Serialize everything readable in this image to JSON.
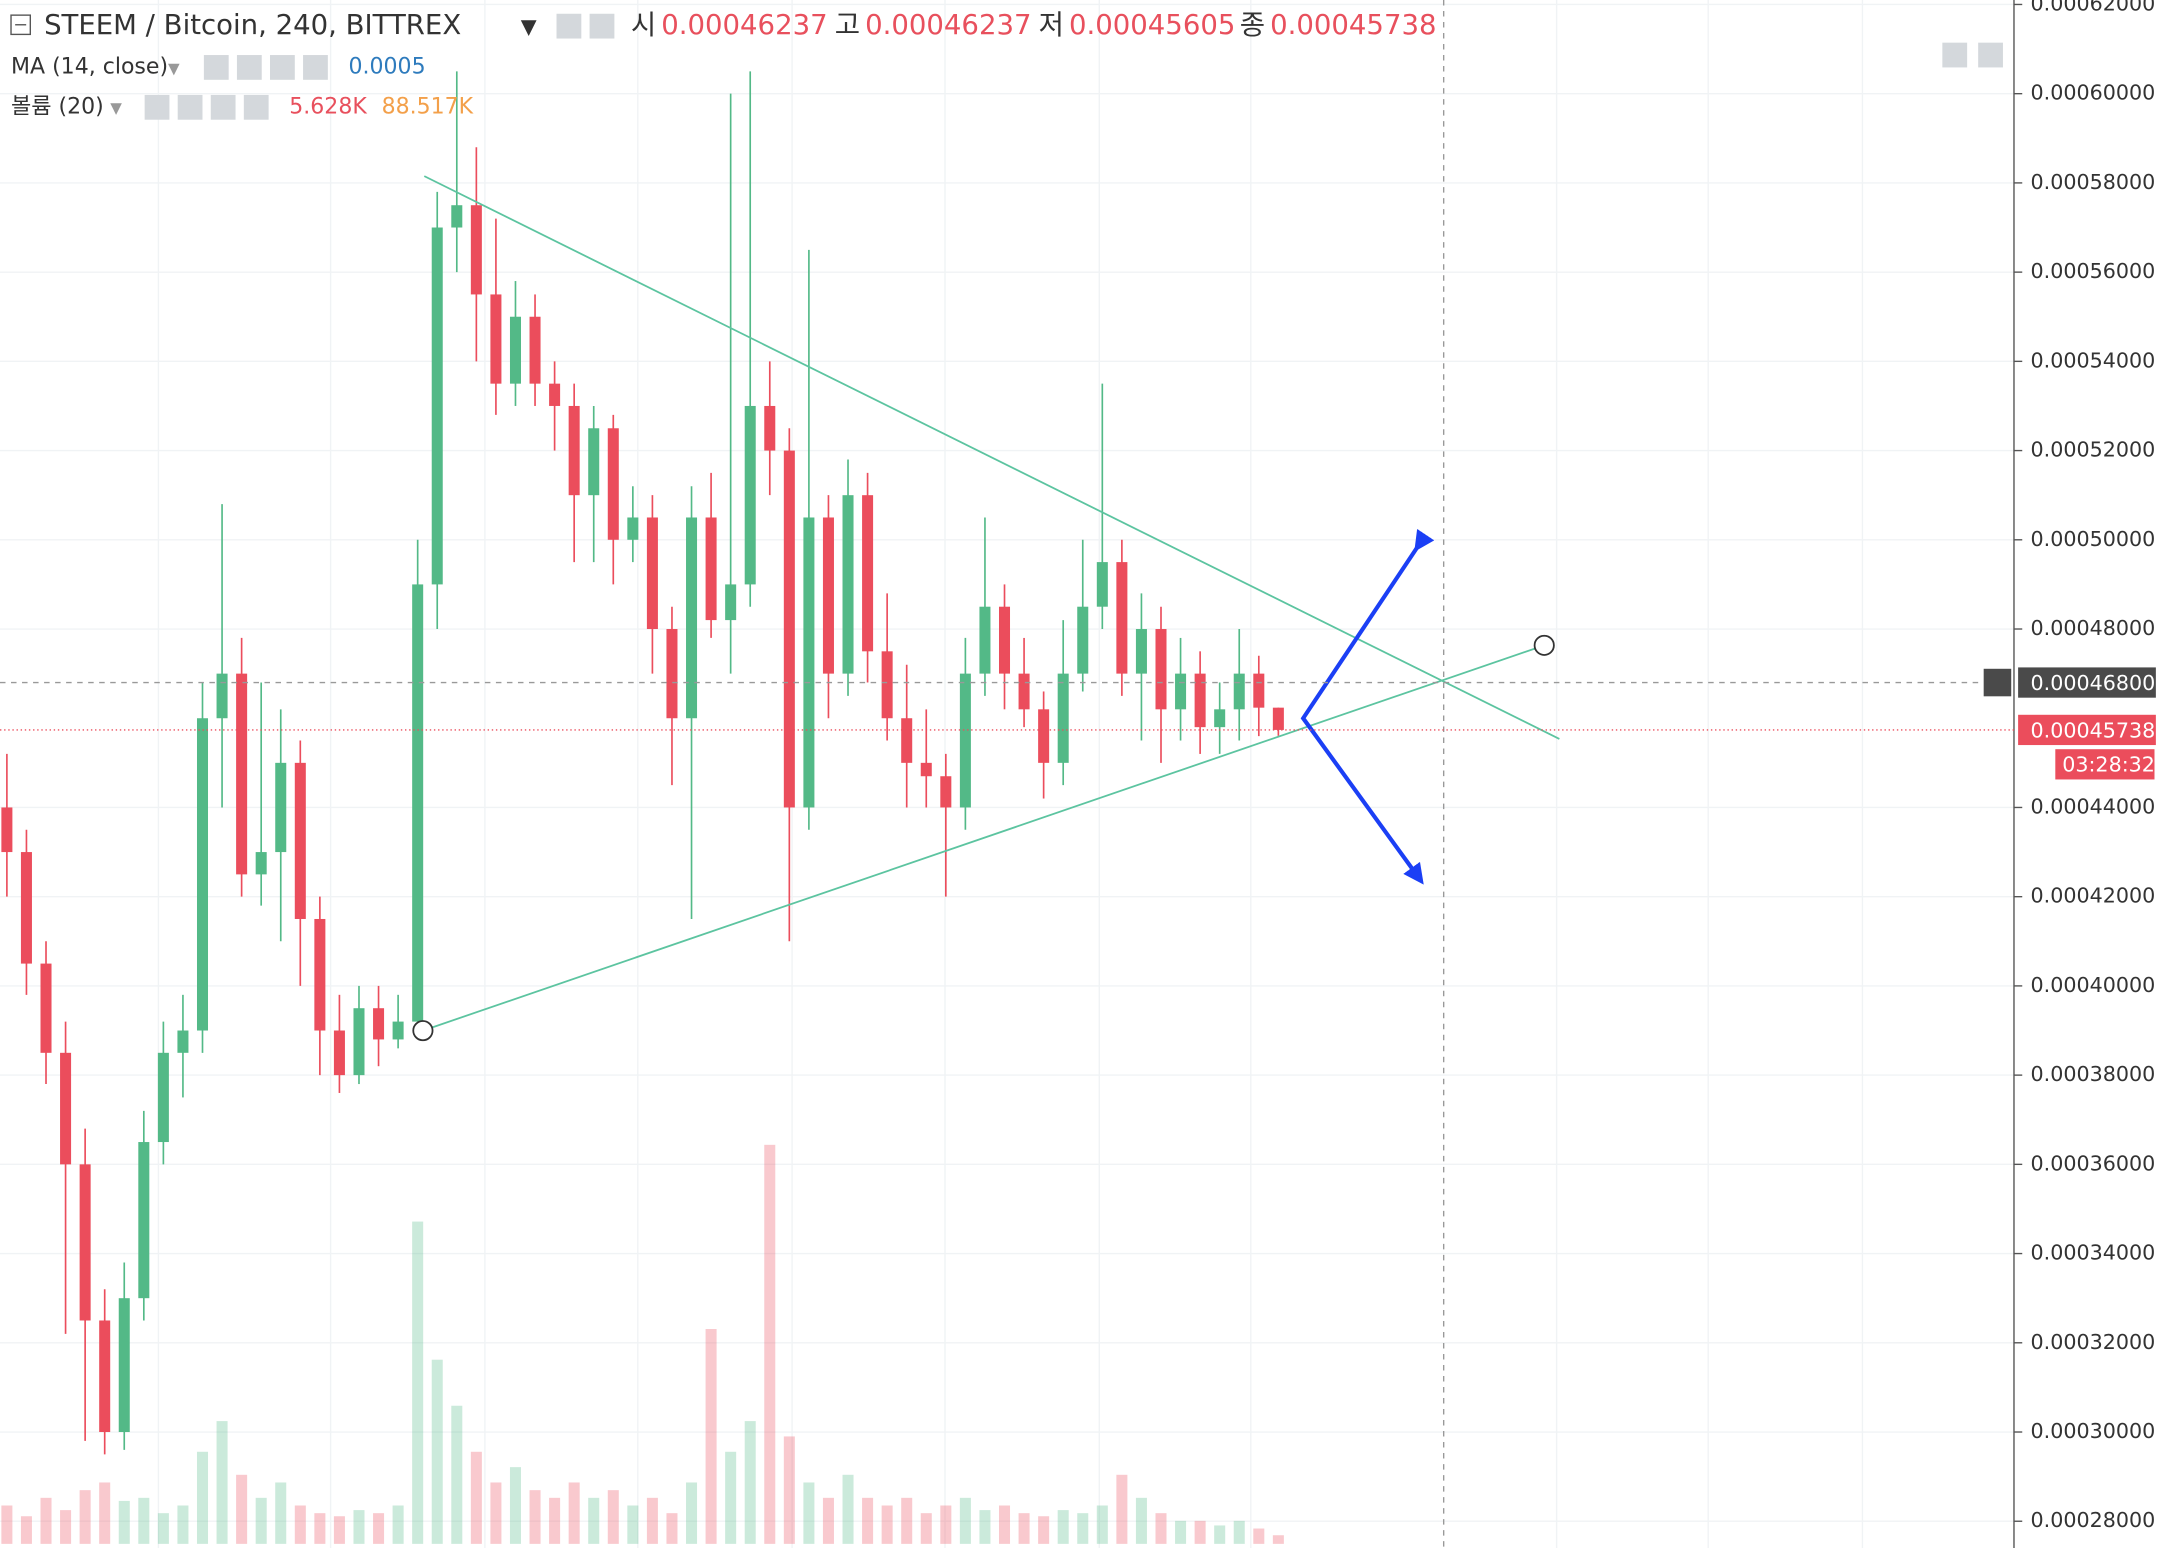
{
  "chart_data": {
    "type": "candlestick",
    "title": "STEEM / Bitcoin, 240, BITTREX",
    "ohlc_names": {
      "open": "시",
      "high": "고",
      "low": "저",
      "close": "종"
    },
    "ohlc_values": {
      "open": "0.00046237",
      "high": "0.00046237",
      "low": "0.00045605",
      "close": "0.00045738"
    },
    "ma_label": "MA (14, close)",
    "ma_value": "0.0005",
    "volume_label": "볼륨 (20)",
    "volume_value": "5.628K",
    "volume_ma_value": "88.517K",
    "up_color": "#53b987",
    "down_color": "#eb4d5c",
    "ylim": [
      0.000274,
      0.000621
    ],
    "yticks": [
      {
        "value": 0.00028,
        "label": "0.00028000"
      },
      {
        "value": 0.0003,
        "label": "0.00030000"
      },
      {
        "value": 0.00032,
        "label": "0.00032000"
      },
      {
        "value": 0.00034,
        "label": "0.00034000"
      },
      {
        "value": 0.00036,
        "label": "0.00036000"
      },
      {
        "value": 0.00038,
        "label": "0.00038000"
      },
      {
        "value": 0.0004,
        "label": "0.00040000"
      },
      {
        "value": 0.00042,
        "label": "0.00042000"
      },
      {
        "value": 0.00044,
        "label": "0.00044000"
      },
      {
        "value": 0.00048,
        "label": "0.00048000"
      },
      {
        "value": 0.0005,
        "label": "0.00050000"
      },
      {
        "value": 0.00052,
        "label": "0.00052000"
      },
      {
        "value": 0.00054,
        "label": "0.00054000"
      },
      {
        "value": 0.00056,
        "label": "0.00056000"
      },
      {
        "value": 0.00058,
        "label": "0.00058000"
      },
      {
        "value": 0.0006,
        "label": "0.00060000"
      },
      {
        "value": 0.00062,
        "label": "0.00062000"
      }
    ],
    "grid": true,
    "crosshair": {
      "value": 0.000468,
      "label": "0.00046800"
    },
    "last_price": {
      "value": 0.00045738,
      "label": "0.00045738"
    },
    "countdown": "03:28:32",
    "open": [
      0.00044,
      0.00043,
      0.000405,
      0.000385,
      0.00036,
      0.000325,
      0.0003,
      0.00033,
      0.000365,
      0.000385,
      0.00039,
      0.00046,
      0.00047,
      0.000425,
      0.00043,
      0.00045,
      0.000415,
      0.00039,
      0.00038,
      0.000395,
      0.000388,
      0.000392,
      0.00049,
      0.00057,
      0.000575,
      0.000555,
      0.000535,
      0.00055,
      0.000535,
      0.00053,
      0.00051,
      0.000525,
      0.0005,
      0.000505,
      0.00048,
      0.00046,
      0.000505,
      0.000482,
      0.00049,
      0.00053,
      0.00052,
      0.00044,
      0.000505,
      0.00047,
      0.00051,
      0.000475,
      0.00046,
      0.00045,
      0.000447,
      0.00044,
      0.00047,
      0.000485,
      0.00047,
      0.000462,
      0.00045,
      0.00047,
      0.000485,
      0.000495,
      0.00047,
      0.00048,
      0.000462,
      0.00047,
      0.000458,
      0.000462,
      0.00047,
      0.00046237
    ],
    "high": [
      0.000452,
      0.000435,
      0.00041,
      0.000392,
      0.000368,
      0.000332,
      0.000338,
      0.000372,
      0.000392,
      0.000398,
      0.000468,
      0.000508,
      0.000478,
      0.000468,
      0.000462,
      0.000455,
      0.00042,
      0.000398,
      0.0004,
      0.0004,
      0.000398,
      0.0005,
      0.000578,
      0.000605,
      0.000588,
      0.000572,
      0.000558,
      0.000555,
      0.00054,
      0.000535,
      0.00053,
      0.000528,
      0.000512,
      0.00051,
      0.000485,
      0.000512,
      0.000515,
      0.0006,
      0.000605,
      0.00054,
      0.000525,
      0.000565,
      0.00051,
      0.000518,
      0.000515,
      0.000488,
      0.000472,
      0.000462,
      0.000452,
      0.000478,
      0.000505,
      0.00049,
      0.000478,
      0.000466,
      0.000482,
      0.0005,
      0.000535,
      0.0005,
      0.000488,
      0.000485,
      0.000478,
      0.000475,
      0.000468,
      0.00048,
      0.000474,
      0.00046237
    ],
    "low": [
      0.00042,
      0.000398,
      0.000378,
      0.000322,
      0.000298,
      0.000295,
      0.000296,
      0.000325,
      0.00036,
      0.000375,
      0.000385,
      0.00044,
      0.00042,
      0.000418,
      0.00041,
      0.0004,
      0.00038,
      0.000376,
      0.000378,
      0.000382,
      0.000386,
      0.000388,
      0.00048,
      0.00056,
      0.00054,
      0.000528,
      0.00053,
      0.00053,
      0.00052,
      0.000495,
      0.000495,
      0.00049,
      0.000495,
      0.00047,
      0.000445,
      0.000415,
      0.000478,
      0.00047,
      0.000485,
      0.00051,
      0.00041,
      0.000435,
      0.00046,
      0.000465,
      0.000468,
      0.000455,
      0.00044,
      0.00044,
      0.00042,
      0.000435,
      0.000465,
      0.000462,
      0.000458,
      0.000442,
      0.000445,
      0.000466,
      0.00048,
      0.000465,
      0.000455,
      0.00045,
      0.000455,
      0.000452,
      0.000452,
      0.000455,
      0.000456,
      0.00045605
    ],
    "close": [
      0.00043,
      0.000405,
      0.000385,
      0.00036,
      0.000325,
      0.0003,
      0.00033,
      0.000365,
      0.000385,
      0.00039,
      0.00046,
      0.00047,
      0.000425,
      0.00043,
      0.00045,
      0.000415,
      0.00039,
      0.00038,
      0.000395,
      0.000388,
      0.000392,
      0.00049,
      0.00057,
      0.000575,
      0.000555,
      0.000535,
      0.00055,
      0.000535,
      0.00053,
      0.00051,
      0.000525,
      0.0005,
      0.000505,
      0.00048,
      0.00046,
      0.000505,
      0.000482,
      0.00049,
      0.00053,
      0.00052,
      0.00044,
      0.000505,
      0.00047,
      0.00051,
      0.000475,
      0.00046,
      0.00045,
      0.000447,
      0.00044,
      0.00047,
      0.000485,
      0.00047,
      0.000462,
      0.00045,
      0.00047,
      0.000485,
      0.000495,
      0.00047,
      0.00048,
      0.000462,
      0.00047,
      0.000458,
      0.000462,
      0.00047,
      0.00046237,
      0.00045738
    ],
    "volume": [
      25,
      18,
      30,
      22,
      35,
      40,
      28,
      30,
      20,
      25,
      60,
      80,
      45,
      30,
      40,
      25,
      20,
      18,
      22,
      20,
      25,
      210,
      120,
      90,
      60,
      40,
      50,
      35,
      30,
      40,
      30,
      35,
      25,
      30,
      20,
      40,
      140,
      60,
      80,
      260,
      70,
      40,
      30,
      45,
      30,
      25,
      30,
      20,
      25,
      30,
      22,
      25,
      20,
      18,
      22,
      20,
      25,
      45,
      30,
      20,
      15,
      15,
      12,
      15,
      10,
      5.628
    ]
  }
}
